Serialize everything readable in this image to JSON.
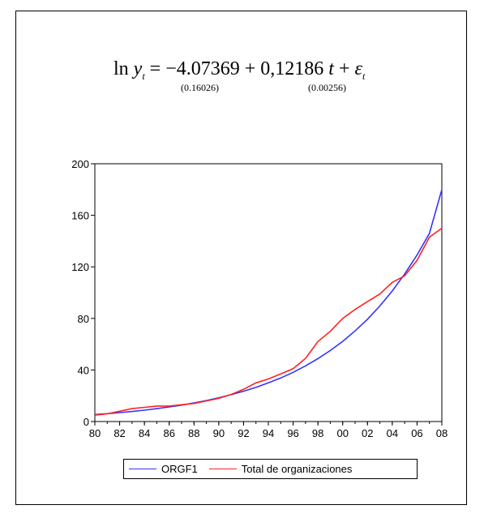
{
  "equation": {
    "lhs": "ln",
    "y": "y",
    "y_sub": "t",
    "equals": "= −",
    "intercept": "4.07369",
    "plus1": "+ ",
    "slope": "0,12186",
    "t": " t",
    "plus2": " + ",
    "epsilon": "ε",
    "eps_sub": "t",
    "se_intercept": "(0.16026)",
    "se_slope": "(0.00256)"
  },
  "chart_data": {
    "type": "line",
    "x": [
      1980,
      1981,
      1982,
      1983,
      1984,
      1985,
      1986,
      1987,
      1988,
      1989,
      1990,
      1991,
      1992,
      1993,
      1994,
      1995,
      1996,
      1997,
      1998,
      1999,
      2000,
      2001,
      2002,
      2003,
      2004,
      2005,
      2006,
      2007,
      2008
    ],
    "x_tick_labels": [
      "80",
      "82",
      "84",
      "86",
      "88",
      "90",
      "92",
      "94",
      "96",
      "98",
      "00",
      "02",
      "04",
      "06",
      "08"
    ],
    "x_tick_years": [
      1980,
      1982,
      1984,
      1986,
      1988,
      1990,
      1992,
      1994,
      1996,
      1998,
      2000,
      2002,
      2004,
      2006,
      2008
    ],
    "y_ticks": [
      0,
      40,
      80,
      120,
      160,
      200
    ],
    "y_tick_labels": [
      "0",
      "40",
      "80",
      "120",
      "160",
      "200"
    ],
    "ylim": [
      0,
      200
    ],
    "xlim": [
      1980,
      2008
    ],
    "series": [
      {
        "name": "ORGF1",
        "color": "#3333ff",
        "values": [
          5.4,
          6.1,
          6.9,
          7.8,
          8.8,
          10.0,
          11.3,
          12.7,
          14.4,
          16.3,
          18.4,
          20.8,
          23.5,
          26.5,
          30.0,
          33.8,
          38.2,
          43.2,
          48.8,
          55.1,
          62.2,
          70.3,
          79.4,
          89.7,
          101.3,
          114.4,
          129.2,
          146.0,
          180.0
        ]
      },
      {
        "name": "Total de organizaciones",
        "color": "#ff2222",
        "values": [
          5,
          6,
          8,
          10,
          11,
          12,
          12,
          13,
          14,
          16,
          18,
          21,
          25,
          30,
          33,
          37,
          41,
          49,
          62,
          70,
          80,
          87,
          93,
          99,
          108,
          113,
          125,
          143,
          150
        ]
      }
    ],
    "legend_position": "bottom",
    "grid": false
  }
}
